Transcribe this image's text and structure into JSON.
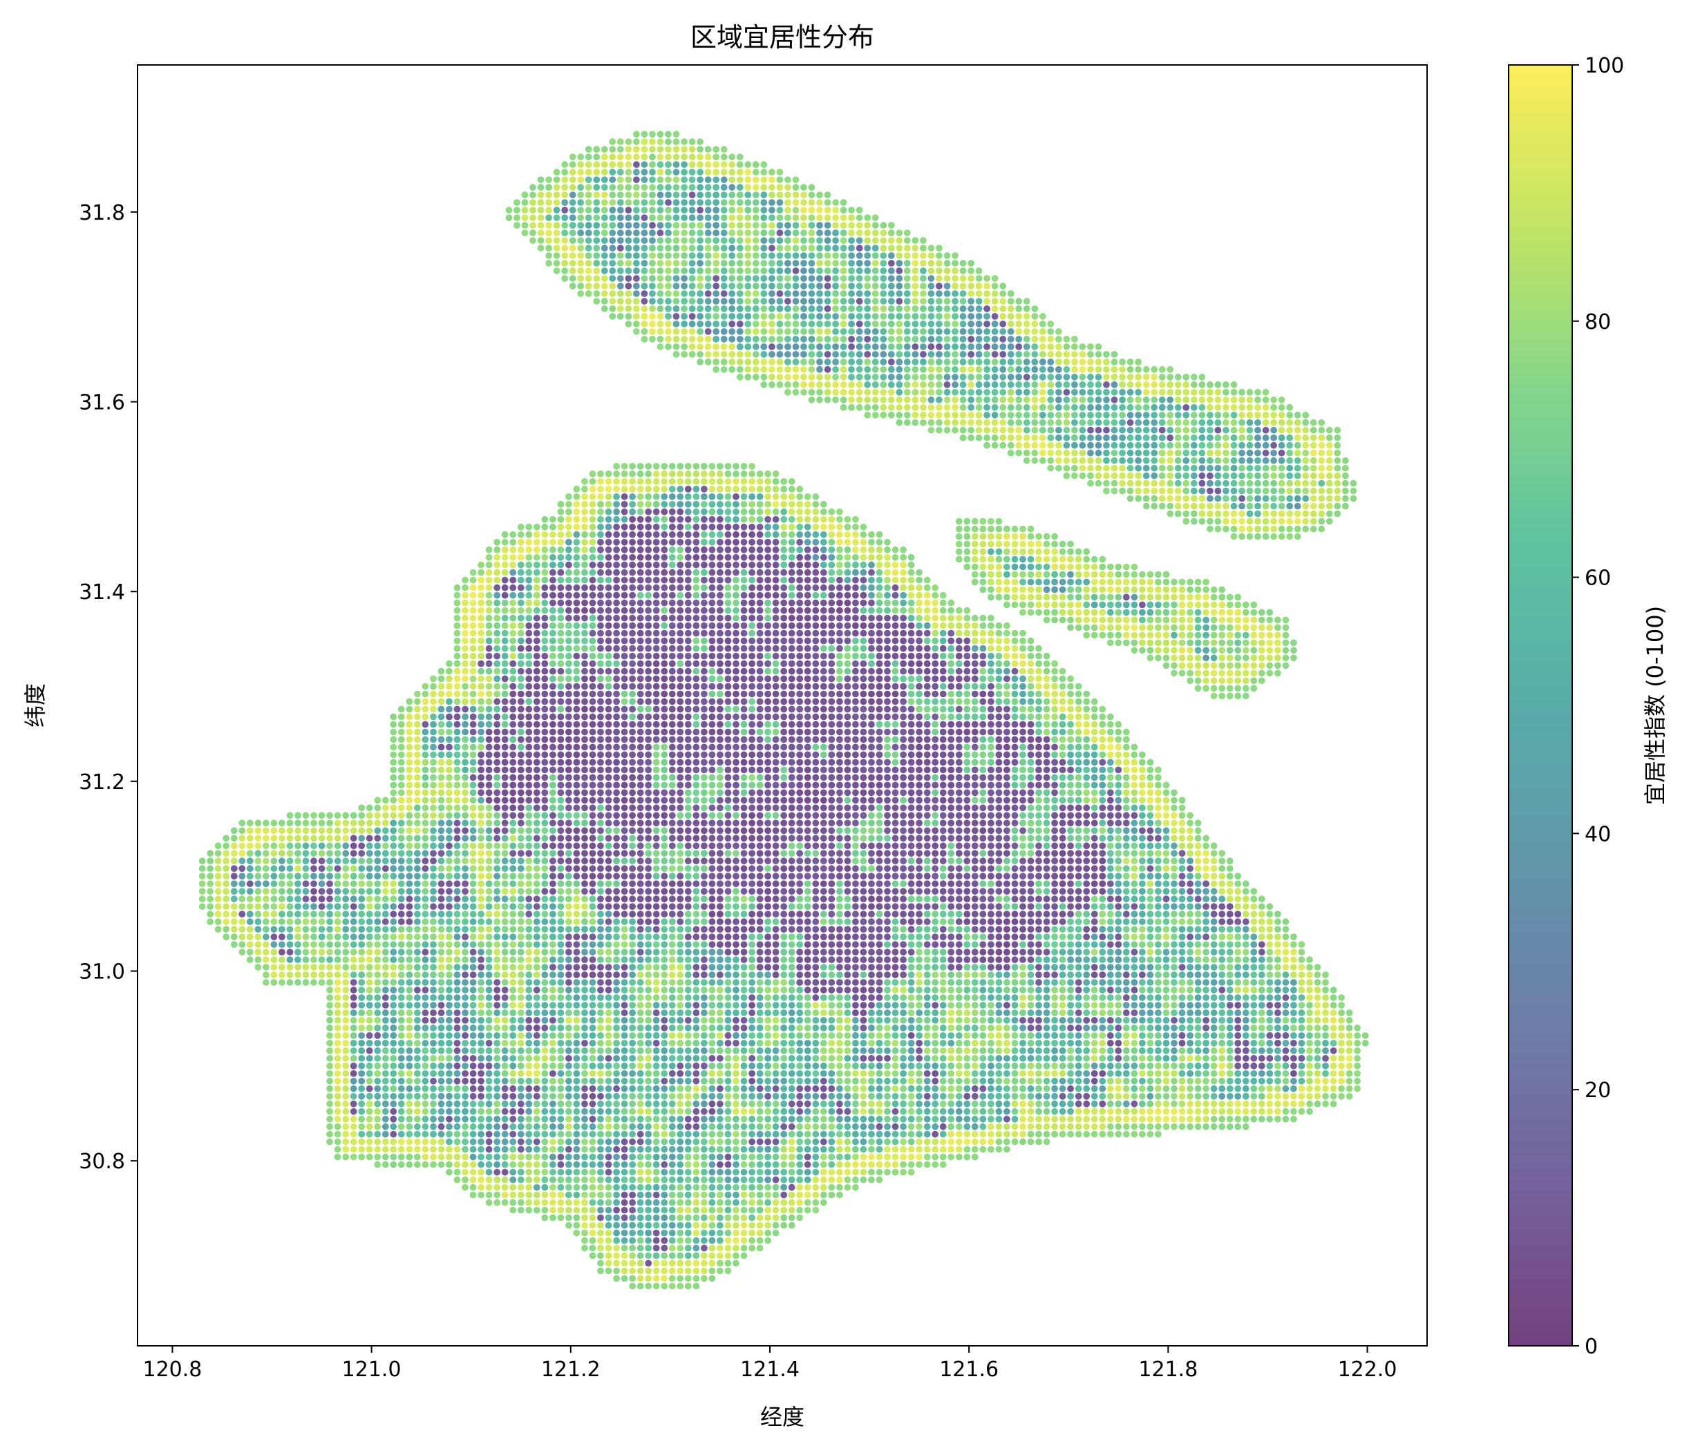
{
  "chart_data": {
    "type": "scatter",
    "title": "区域宜居性分布",
    "xlabel": "经度",
    "ylabel": "纬度",
    "xlim": [
      120.765,
      122.06
    ],
    "ylim": [
      30.605,
      31.955
    ],
    "xticks": [
      120.8,
      121.0,
      121.2,
      121.4,
      121.6,
      121.8,
      122.0
    ],
    "yticks": [
      30.8,
      31.0,
      31.2,
      31.4,
      31.6,
      31.8
    ],
    "xtick_labels": [
      "120.8",
      "121.0",
      "121.2",
      "121.4",
      "121.6",
      "121.8",
      "122.0"
    ],
    "ytick_labels": [
      "30.8",
      "31.0",
      "31.2",
      "31.4",
      "31.6",
      "31.8"
    ],
    "grid": false,
    "colormap": "viridis",
    "marker_alpha": 0.75,
    "colorbar": {
      "label": "宜居性指数 (0-100)",
      "range": [
        0,
        100
      ],
      "ticks": [
        0,
        20,
        40,
        60,
        80,
        100
      ],
      "tick_labels": [
        "0",
        "20",
        "40",
        "60",
        "80",
        "100"
      ]
    },
    "regions": [
      {
        "name": "mainland",
        "outline": [
          [
            120.83,
            31.12
          ],
          [
            120.87,
            31.16
          ],
          [
            120.98,
            31.17
          ],
          [
            121.02,
            31.19
          ],
          [
            121.02,
            31.27
          ],
          [
            121.08,
            31.33
          ],
          [
            121.08,
            31.4
          ],
          [
            121.13,
            31.46
          ],
          [
            121.18,
            31.48
          ],
          [
            121.22,
            31.53
          ],
          [
            121.32,
            31.54
          ],
          [
            121.4,
            31.53
          ],
          [
            121.48,
            31.48
          ],
          [
            121.54,
            31.44
          ],
          [
            121.58,
            31.39
          ],
          [
            121.65,
            31.36
          ],
          [
            121.71,
            31.3
          ],
          [
            121.76,
            31.25
          ],
          [
            121.8,
            31.2
          ],
          [
            121.85,
            31.13
          ],
          [
            121.92,
            31.05
          ],
          [
            121.97,
            30.98
          ],
          [
            122.0,
            30.93
          ],
          [
            121.99,
            30.87
          ],
          [
            121.92,
            30.84
          ],
          [
            121.82,
            30.83
          ],
          [
            121.68,
            30.82
          ],
          [
            121.55,
            30.79
          ],
          [
            121.48,
            30.77
          ],
          [
            121.42,
            30.73
          ],
          [
            121.38,
            30.7
          ],
          [
            121.34,
            30.67
          ],
          [
            121.27,
            30.66
          ],
          [
            121.23,
            30.68
          ],
          [
            121.2,
            30.73
          ],
          [
            121.1,
            30.76
          ],
          [
            121.07,
            30.79
          ],
          [
            120.96,
            30.8
          ],
          [
            120.95,
            30.86
          ],
          [
            120.95,
            30.98
          ],
          [
            120.9,
            30.98
          ],
          [
            120.83,
            31.06
          ]
        ],
        "core": [
          [
            121.13,
            31.3
          ],
          [
            121.18,
            31.42
          ],
          [
            121.28,
            31.49
          ],
          [
            121.38,
            31.47
          ],
          [
            121.48,
            31.41
          ],
          [
            121.57,
            31.35
          ],
          [
            121.64,
            31.29
          ],
          [
            121.7,
            31.22
          ],
          [
            121.74,
            31.13
          ],
          [
            121.73,
            31.04
          ],
          [
            121.64,
            31.0
          ],
          [
            121.55,
            31.0
          ],
          [
            121.48,
            30.95
          ],
          [
            121.43,
            30.98
          ],
          [
            121.35,
            31.02
          ],
          [
            121.24,
            31.06
          ],
          [
            121.16,
            31.12
          ],
          [
            121.1,
            31.2
          ]
        ]
      },
      {
        "name": "chongming-island",
        "outline": [
          [
            121.13,
            31.8
          ],
          [
            121.2,
            31.86
          ],
          [
            121.28,
            31.89
          ],
          [
            121.32,
            31.88
          ],
          [
            121.42,
            31.84
          ],
          [
            121.48,
            31.81
          ],
          [
            121.56,
            31.77
          ],
          [
            121.63,
            31.73
          ],
          [
            121.7,
            31.67
          ],
          [
            121.78,
            31.64
          ],
          [
            121.9,
            31.61
          ],
          [
            121.97,
            31.57
          ],
          [
            121.99,
            31.5
          ],
          [
            121.95,
            31.46
          ],
          [
            121.88,
            31.45
          ],
          [
            121.8,
            31.48
          ],
          [
            121.7,
            31.52
          ],
          [
            121.6,
            31.56
          ],
          [
            121.48,
            31.59
          ],
          [
            121.38,
            31.62
          ],
          [
            121.28,
            31.66
          ],
          [
            121.2,
            31.72
          ]
        ]
      },
      {
        "name": "changxing-island",
        "outline": [
          [
            121.59,
            31.48
          ],
          [
            121.66,
            31.47
          ],
          [
            121.75,
            31.43
          ],
          [
            121.84,
            31.41
          ],
          [
            121.92,
            31.37
          ],
          [
            121.93,
            31.33
          ],
          [
            121.88,
            31.29
          ],
          [
            121.84,
            31.29
          ],
          [
            121.78,
            31.33
          ],
          [
            121.7,
            31.36
          ],
          [
            121.62,
            31.39
          ],
          [
            121.59,
            31.43
          ]
        ]
      }
    ]
  }
}
